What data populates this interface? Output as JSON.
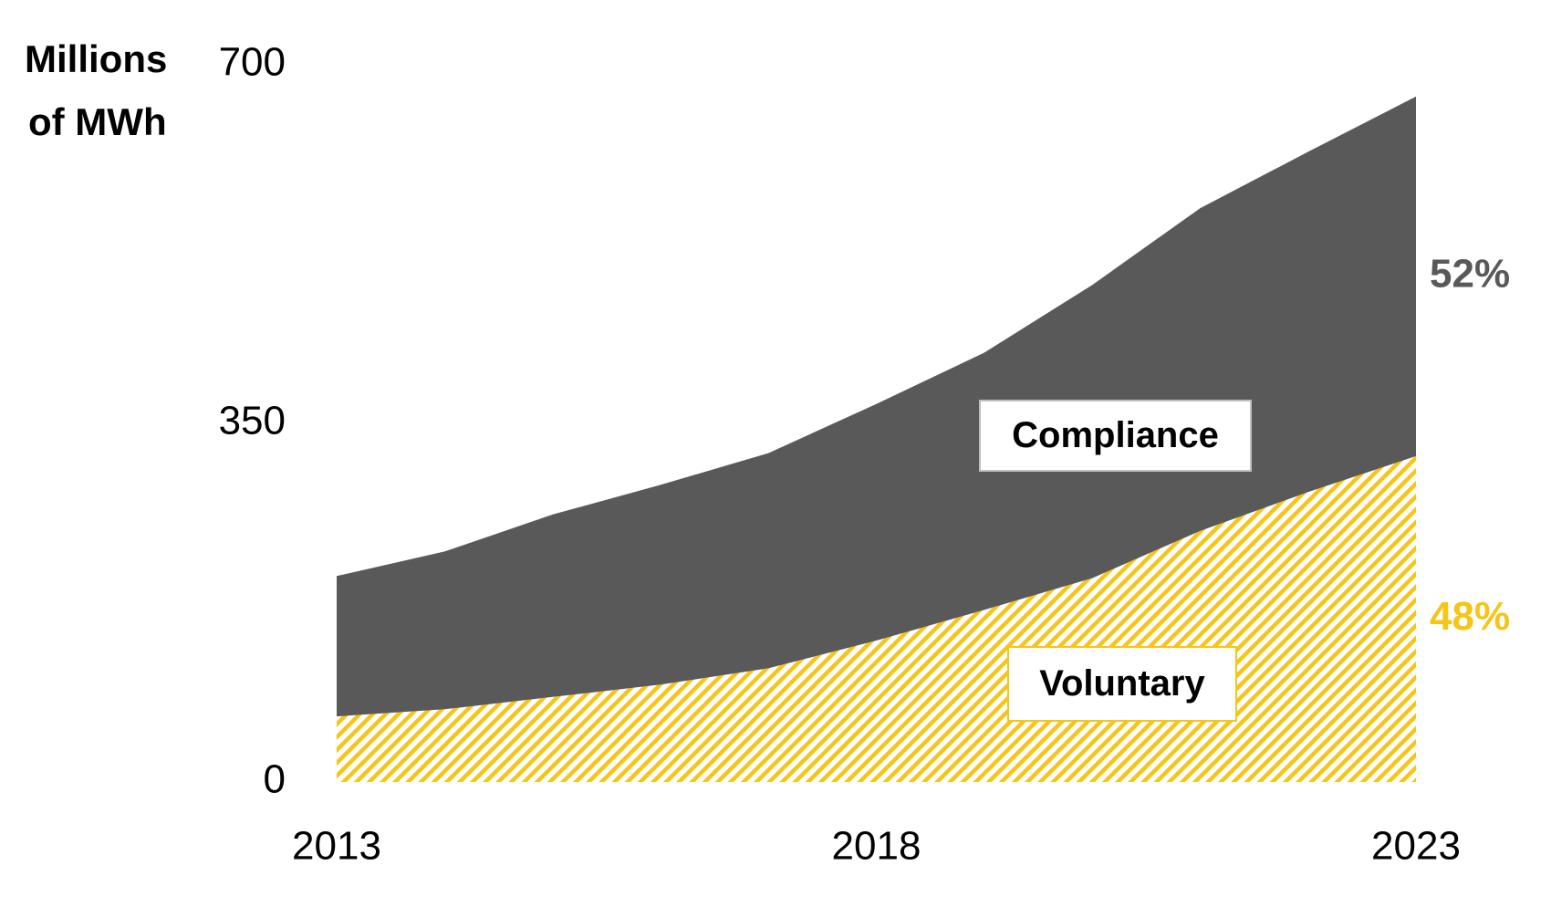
{
  "chart_data": {
    "type": "stacked-area",
    "y_label": [
      "Millions",
      "of MWh"
    ],
    "x": [
      2013,
      2014,
      2015,
      2016,
      2017,
      2018,
      2019,
      2020,
      2021,
      2022,
      2023
    ],
    "xlim": [
      2013,
      2023
    ],
    "xticks": [
      2013,
      2018,
      2023
    ],
    "ylim": [
      0,
      700
    ],
    "yticks": [
      0,
      350,
      700
    ],
    "series": [
      {
        "name": "Voluntary",
        "color": "#f5c518",
        "pattern": "hatch",
        "values": [
          64,
          71,
          83,
          95,
          111,
          138,
          168,
          199,
          245,
          283,
          318
        ],
        "share": 48,
        "share_label": "48%"
      },
      {
        "name": "Compliance",
        "color": "#595959",
        "pattern": "solid",
        "values": [
          137,
          154,
          178,
          195,
          210,
          231,
          251,
          286,
          315,
          332,
          351
        ],
        "share": 52,
        "share_label": "52%"
      }
    ]
  }
}
